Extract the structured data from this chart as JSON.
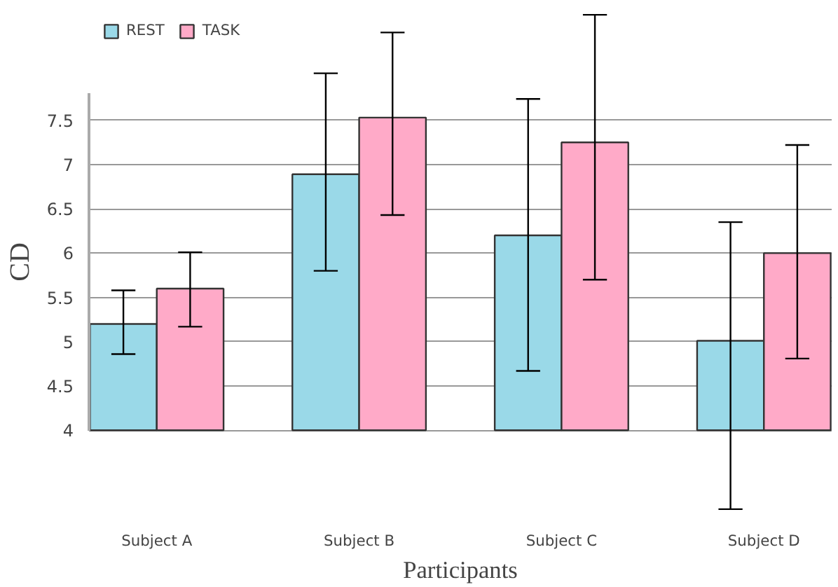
{
  "chart_data": {
    "type": "bar",
    "xlabel": "Participants",
    "ylabel": "CD",
    "categories": [
      "Subject A",
      "Subject B",
      "Subject C",
      "Subject D"
    ],
    "series": [
      {
        "name": "REST",
        "color": "#9ad9e8",
        "values": [
          5.2,
          6.89,
          6.2,
          5.01
        ],
        "errors": [
          [
            4.86,
            5.58
          ],
          [
            5.8,
            8.03
          ],
          [
            4.67,
            7.74
          ],
          [
            3.11,
            6.35
          ]
        ]
      },
      {
        "name": "TASK",
        "color": "#ffaac8",
        "values": [
          5.6,
          7.53,
          7.25,
          6.0
        ],
        "errors": [
          [
            5.17,
            6.01
          ],
          [
            6.43,
            8.49
          ],
          [
            5.7,
            8.69
          ],
          [
            4.81,
            7.22
          ]
        ]
      }
    ],
    "ylim": [
      4,
      7.8
    ],
    "yticks": [
      4,
      4.5,
      5,
      5.5,
      6,
      6.5,
      7,
      7.5
    ],
    "grid": "y",
    "legend": "top left"
  }
}
